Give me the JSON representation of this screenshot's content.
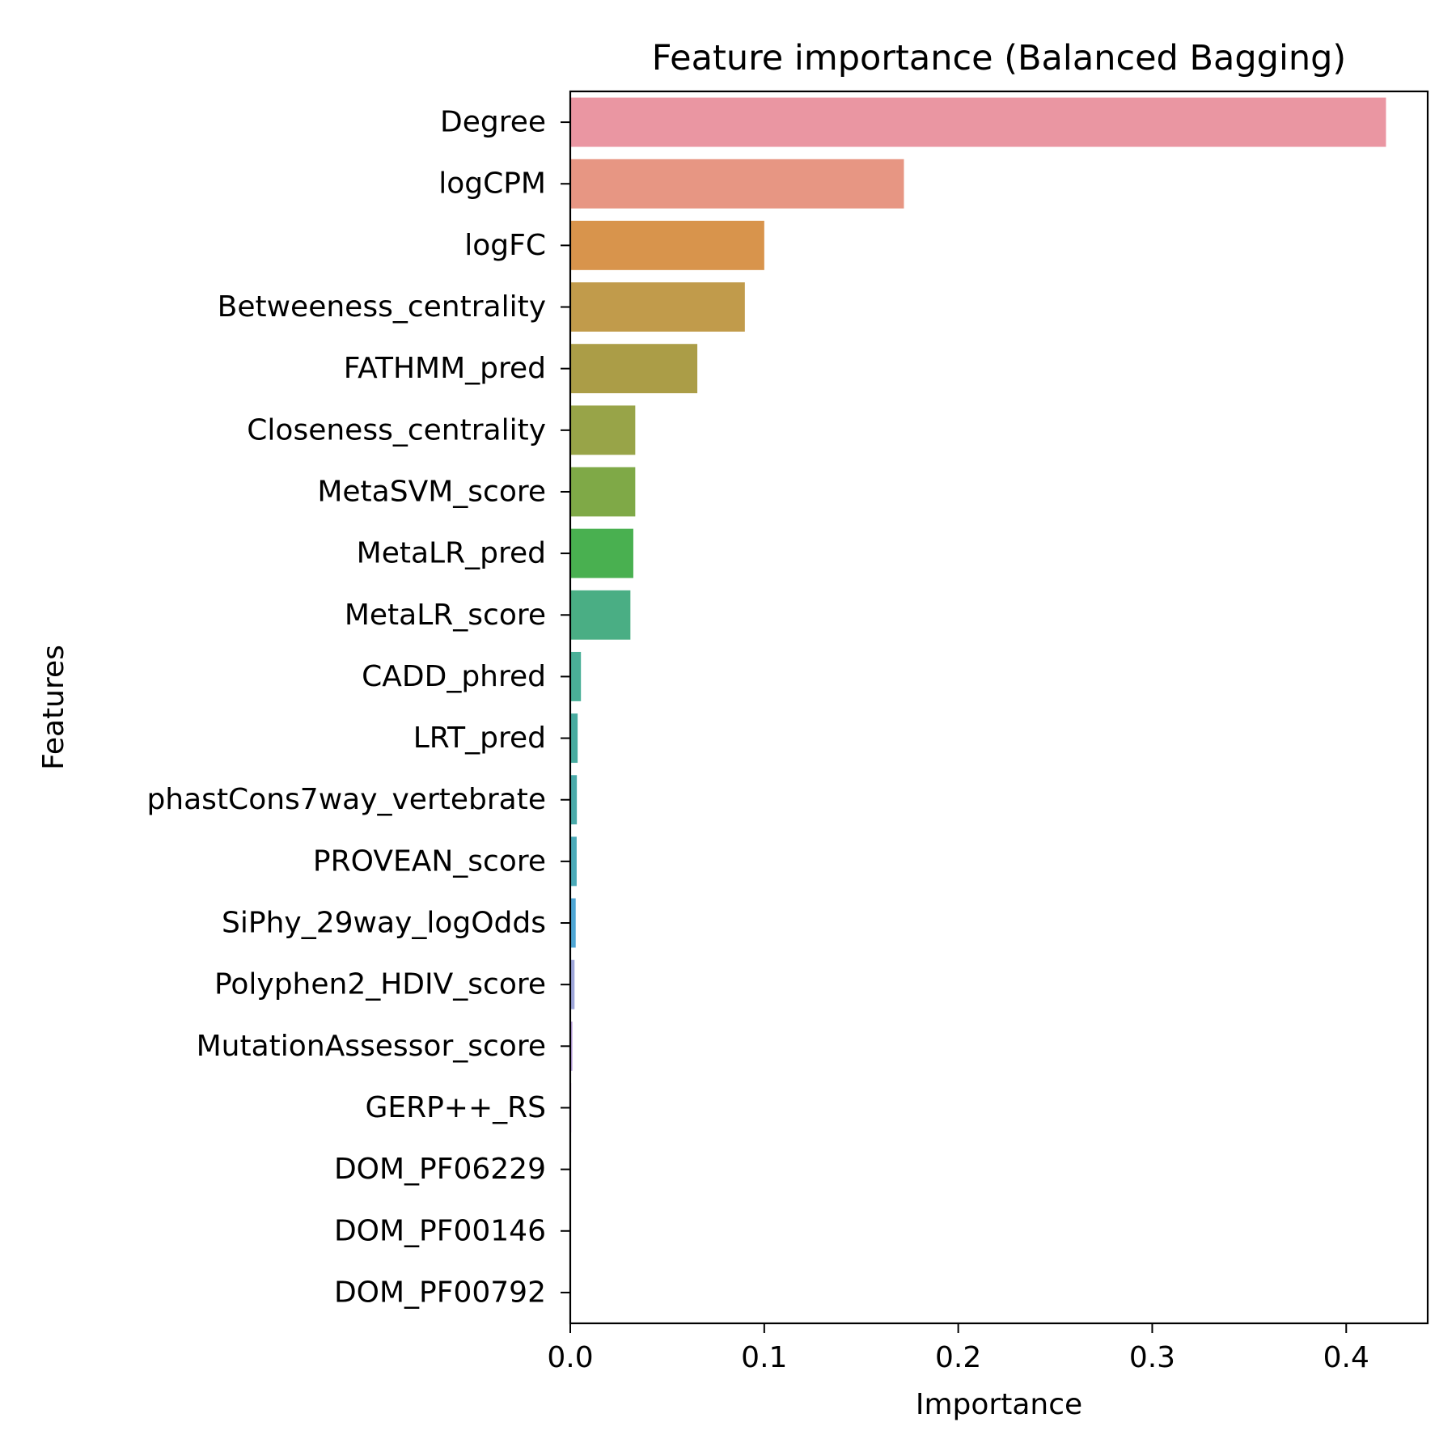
{
  "chart_data": {
    "type": "bar",
    "orientation": "horizontal",
    "title": "Feature importance (Balanced Bagging)",
    "xlabel": "Importance",
    "ylabel": "Features",
    "xlim": [
      0.0,
      0.442
    ],
    "xticks": [
      0.0,
      0.1,
      0.2,
      0.3,
      0.4
    ],
    "xtick_labels": [
      "0.0",
      "0.1",
      "0.2",
      "0.3",
      "0.4"
    ],
    "grid": false,
    "legend": "none",
    "categories": [
      "Degree",
      "logCPM",
      "logFC",
      "Betweeness_centrality",
      "FATHMM_pred",
      "Closeness_centrality",
      "MetaSVM_score",
      "MetaLR_pred",
      "MetaLR_score",
      "CADD_phred",
      "LRT_pred",
      "phastCons7way_vertebrate",
      "PROVEAN_score",
      "SiPhy_29way_logOdds",
      "Polyphen2_HDIV_score",
      "MutationAssessor_score",
      "GERP++_RS",
      "DOM_PF06229",
      "DOM_PF00146",
      "DOM_PF00792"
    ],
    "values": [
      0.4205,
      0.172,
      0.1,
      0.09,
      0.0655,
      0.0335,
      0.0335,
      0.0325,
      0.031,
      0.0055,
      0.0038,
      0.0034,
      0.0033,
      0.0028,
      0.0022,
      0.0011,
      0.0005,
      0.0,
      0.0,
      0.0
    ],
    "colors": [
      "#ea96a2",
      "#e79683",
      "#d8944c",
      "#c19b4b",
      "#ab9d47",
      "#98a448",
      "#7fa947",
      "#49b050",
      "#4aae84",
      "#4aaf97",
      "#48ab9f",
      "#4aaaa9",
      "#4baab8",
      "#4fa6d4",
      "#9ea6d9",
      "#b8a1dc",
      "#e09be8",
      "#e59ad8",
      "#e897ca",
      "#ea95b7"
    ]
  }
}
